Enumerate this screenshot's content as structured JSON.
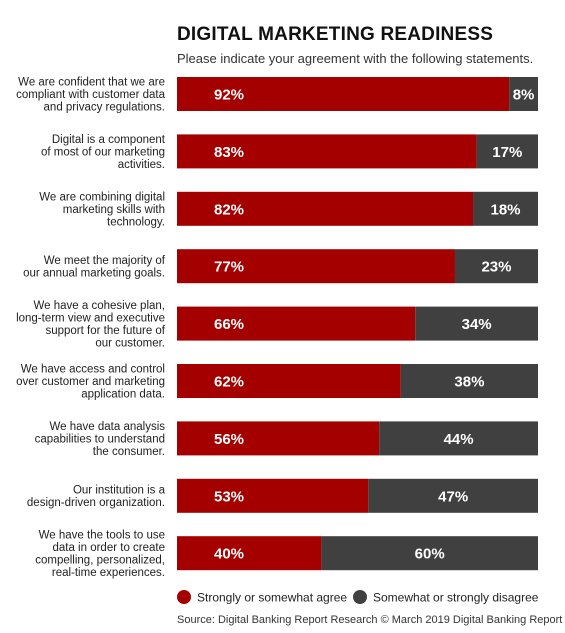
{
  "colors": {
    "agree": "#a50000",
    "disagree": "#404040",
    "label_text": "#ffffff"
  },
  "chart_data": {
    "type": "bar",
    "orientation": "horizontal",
    "stacked": true,
    "title": "DIGITAL MARKETING READINESS",
    "subtitle": "Please indicate your agreement with the following statements.",
    "categories": [
      [
        "We are confident that we are",
        "compliant with customer data",
        "and privacy regulations."
      ],
      [
        "Digital is a component",
        "of most of our marketing",
        "activities."
      ],
      [
        "We are combining digital",
        "marketing skills with",
        "technology."
      ],
      [
        "We meet the majority of",
        "our annual marketing goals."
      ],
      [
        "We have a cohesive plan,",
        "long-term view and executive",
        "support for the future of",
        "our customer."
      ],
      [
        "We have access and control",
        "over customer and marketing",
        "application data."
      ],
      [
        "We have data analysis",
        "capabilities to understand",
        "the consumer."
      ],
      [
        "Our institution is a",
        "design-driven organization."
      ],
      [
        "We have the tools to use",
        "data in order to create",
        "compelling, personalized,",
        "real-time experiences."
      ]
    ],
    "series": [
      {
        "name": "Strongly or somewhat agree",
        "values": [
          92,
          83,
          82,
          77,
          66,
          62,
          56,
          53,
          40
        ]
      },
      {
        "name": "Somewhat or strongly disagree",
        "values": [
          8,
          17,
          18,
          23,
          34,
          38,
          44,
          47,
          60
        ]
      }
    ],
    "value_suffix": "%",
    "xlim": [
      0,
      100
    ],
    "legend": "bottom"
  },
  "source": "Source: Digital Banking Report Research © March 2019 Digital Banking Report"
}
